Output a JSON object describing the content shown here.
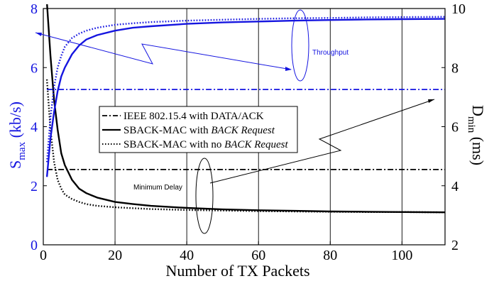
{
  "chart_data": {
    "type": "line",
    "xlabel": "Number of TX Packets",
    "ylabel_left": {
      "main": "S",
      "sub": "max",
      "unit": " (kb/s)"
    },
    "ylabel_right": {
      "main": "D",
      "sub": "min",
      "unit": " (ms)"
    },
    "xlim": [
      0,
      112
    ],
    "ylim_left": [
      0,
      8
    ],
    "ylim_right": [
      2,
      10
    ],
    "x_ticks": [
      0,
      20,
      40,
      60,
      80,
      100
    ],
    "y_ticks_left": [
      0,
      2,
      4,
      6,
      8
    ],
    "y_ticks_right": [
      2,
      4,
      6,
      8,
      10
    ],
    "grid": "vertical",
    "legend_position": "center-left",
    "legend": [
      {
        "label": "IEEE 802.15.4 with DATA/ACK",
        "italic_suffix": ""
      },
      {
        "label": "SBACK-MAC with ",
        "italic_suffix": "BACK Request"
      },
      {
        "label": "SBACK-MAC with no ",
        "italic_suffix": "BACK Request"
      }
    ],
    "annotations": {
      "throughput": "Throughput",
      "delay": "Minimum Delay"
    },
    "throughput_series": [
      {
        "style": "dashdot",
        "axis": "left",
        "color": "#1515e0",
        "x": [
          1,
          112
        ],
        "y": [
          5.26,
          5.26
        ]
      },
      {
        "style": "solid",
        "axis": "left",
        "color": "#1515e0",
        "x": [
          1,
          2,
          3,
          4,
          5,
          6,
          8,
          10,
          12,
          15,
          20,
          25,
          30,
          40,
          50,
          60,
          70,
          80,
          90,
          100,
          112
        ],
        "y": [
          2.3,
          3.6,
          4.5,
          5.2,
          5.7,
          6.0,
          6.45,
          6.75,
          6.95,
          7.1,
          7.25,
          7.35,
          7.4,
          7.48,
          7.53,
          7.56,
          7.59,
          7.61,
          7.63,
          7.64,
          7.65
        ]
      },
      {
        "style": "dotted",
        "axis": "left",
        "color": "#1515e0",
        "x": [
          1,
          2,
          3,
          4,
          5,
          6,
          8,
          10,
          12,
          15,
          20,
          25,
          30,
          40,
          50,
          60,
          70,
          80,
          90,
          100,
          112
        ],
        "y": [
          2.8,
          4.3,
          5.35,
          6.0,
          6.4,
          6.7,
          7.0,
          7.15,
          7.25,
          7.35,
          7.45,
          7.5,
          7.54,
          7.59,
          7.62,
          7.65,
          7.67,
          7.68,
          7.7,
          7.71,
          7.72
        ]
      }
    ],
    "delay_series": [
      {
        "style": "dashdot",
        "axis": "right",
        "color": "#000000",
        "x": [
          1,
          112
        ],
        "y": [
          4.55,
          4.55
        ]
      },
      {
        "style": "solid",
        "axis": "right",
        "color": "#000000",
        "x": [
          1,
          2,
          3,
          4,
          5,
          6,
          8,
          10,
          12,
          15,
          20,
          25,
          30,
          40,
          50,
          60,
          70,
          80,
          90,
          100,
          112
        ],
        "y": [
          10.2,
          8.4,
          6.9,
          5.9,
          5.1,
          4.7,
          4.2,
          3.9,
          3.75,
          3.6,
          3.45,
          3.38,
          3.32,
          3.25,
          3.2,
          3.17,
          3.15,
          3.13,
          3.12,
          3.11,
          3.1
        ]
      },
      {
        "style": "dotted",
        "axis": "right",
        "color": "#000000",
        "x": [
          1,
          2,
          3,
          4,
          5,
          6,
          8,
          10,
          12,
          15,
          20,
          25,
          30,
          40,
          50,
          60,
          70,
          80,
          90,
          100,
          112
        ],
        "y": [
          7.6,
          5.9,
          4.8,
          4.2,
          3.9,
          3.7,
          3.55,
          3.45,
          3.38,
          3.32,
          3.27,
          3.24,
          3.21,
          3.18,
          3.16,
          3.14,
          3.13,
          3.12,
          3.11,
          3.11,
          3.1
        ]
      }
    ]
  }
}
